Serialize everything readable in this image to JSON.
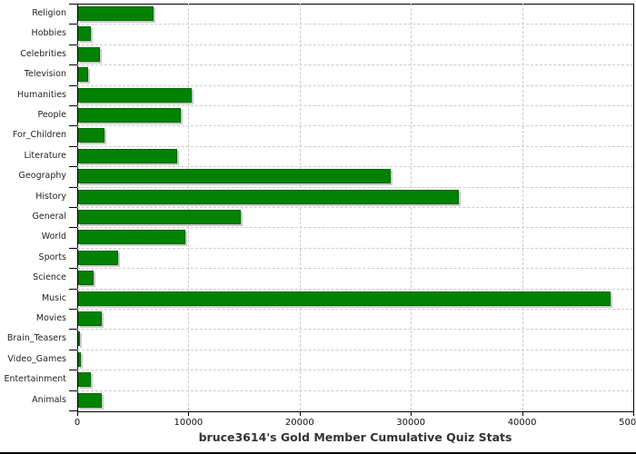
{
  "title": "bruce3614's Gold Member Cumulative Quiz Stats",
  "chart_data": {
    "type": "bar",
    "orientation": "horizontal",
    "title": "bruce3614's Gold Member Cumulative Quiz Stats",
    "categories": [
      "Religion",
      "Hobbies",
      "Celebrities",
      "Television",
      "Humanities",
      "People",
      "For_Children",
      "Literature",
      "Geography",
      "History",
      "General",
      "World",
      "Sports",
      "Science",
      "Music",
      "Movies",
      "Brain_Teasers",
      "Video_Games",
      "Entertainment",
      "Animals"
    ],
    "values": [
      6800,
      1150,
      2000,
      900,
      10200,
      9200,
      2400,
      8900,
      28100,
      34200,
      14600,
      9600,
      3600,
      1400,
      47900,
      2100,
      150,
      250,
      1150,
      2100
    ],
    "xlim": [
      0,
      50000
    ],
    "x_ticks": [
      0,
      10000,
      20000,
      30000,
      40000,
      50000
    ],
    "x_tick_labels": [
      "0",
      "10000",
      "20000",
      "30000",
      "40000",
      "50000"
    ],
    "grid": "dashed",
    "legend": "none",
    "colors": {
      "bar_fill": "#028202",
      "bar_border": "#036603",
      "bar_shadow": "#c9c9c9",
      "gridline": "#cccccc",
      "axis": "#000000",
      "category_label": "#222222",
      "tick_label": "#111111",
      "title": "#333333",
      "background": "#ffffff"
    }
  }
}
